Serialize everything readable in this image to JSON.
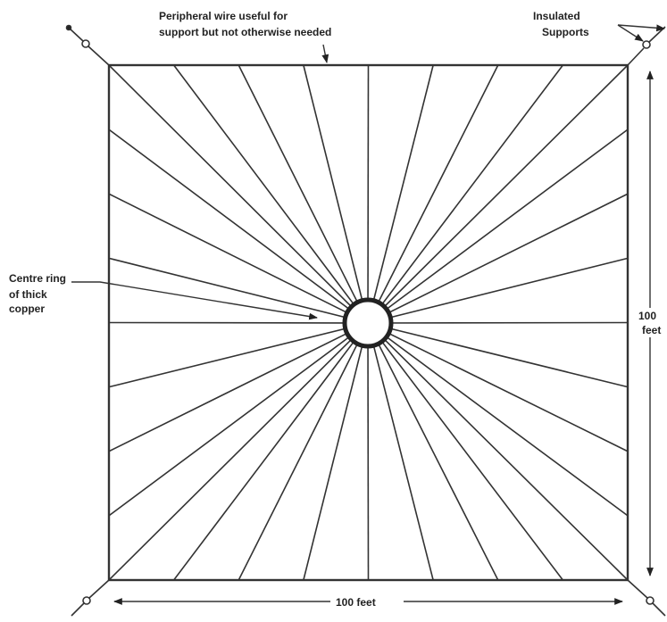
{
  "labels": {
    "peripheral": [
      "Peripheral  wire useful for",
      "support but not otherwise needed"
    ],
    "supports": [
      "Insulated",
      "Supports"
    ],
    "centre": [
      "Centre ring",
      "of thick",
      "copper"
    ],
    "height": [
      "100",
      "feet"
    ],
    "width": "100 feet"
  }
}
